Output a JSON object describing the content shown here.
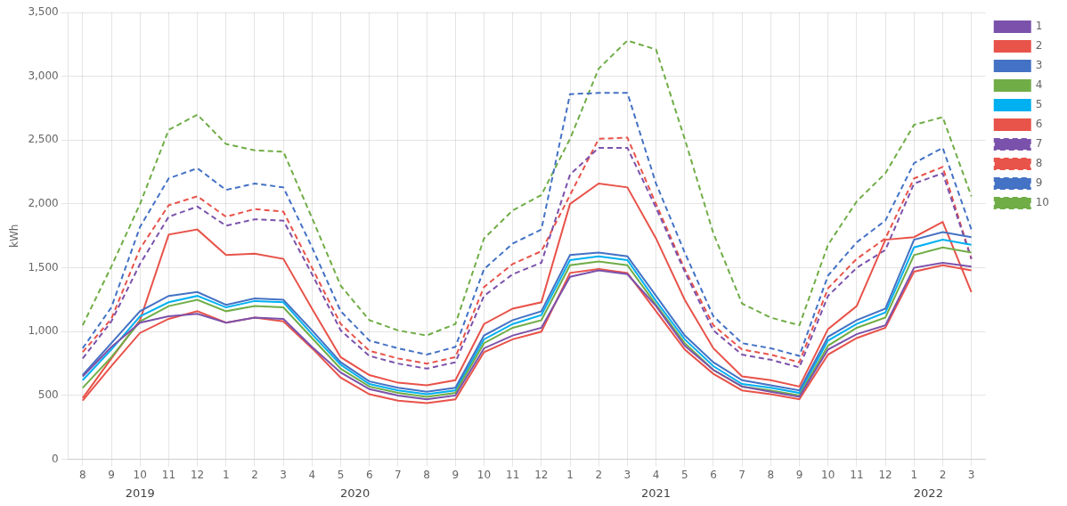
{
  "chart_data": {
    "type": "line",
    "ylabel": "kWh",
    "categories": [
      "8",
      "9",
      "10",
      "11",
      "12",
      "1",
      "2",
      "3",
      "4",
      "5",
      "6",
      "7",
      "8",
      "9",
      "10",
      "11",
      "12",
      "1",
      "2",
      "3",
      "4",
      "5",
      "6",
      "7",
      "8",
      "9",
      "10",
      "11",
      "12",
      "1",
      "2",
      "3"
    ],
    "series": [
      {
        "name": "1",
        "color": "#7B52AB",
        "line_style": "solid",
        "values": [
          650,
          880,
          1070,
          1120,
          1140,
          1070,
          1110,
          1100,
          880,
          680,
          550,
          500,
          470,
          500,
          870,
          970,
          1030,
          1430,
          1480,
          1450,
          1200,
          890,
          700,
          570,
          530,
          490,
          860,
          980,
          1050,
          1500,
          1540,
          1510
        ]
      },
      {
        "name": "2",
        "color": "#E8534A",
        "line_style": "solid",
        "values": [
          460,
          730,
          990,
          1100,
          1160,
          1070,
          1110,
          1080,
          870,
          640,
          510,
          460,
          440,
          470,
          840,
          940,
          1000,
          1460,
          1490,
          1460,
          1160,
          860,
          670,
          540,
          510,
          470,
          820,
          950,
          1030,
          1470,
          1520,
          1480
        ]
      },
      {
        "name": "3",
        "color": "#4472C4",
        "line_style": "solid",
        "values": [
          660,
          910,
          1160,
          1280,
          1310,
          1210,
          1260,
          1250,
          1010,
          760,
          610,
          560,
          530,
          560,
          970,
          1090,
          1160,
          1600,
          1620,
          1590,
          1280,
          970,
          760,
          620,
          580,
          540,
          960,
          1090,
          1180,
          1720,
          1780,
          1740
        ]
      },
      {
        "name": "4",
        "color": "#70AD47",
        "line_style": "solid",
        "values": [
          560,
          800,
          1080,
          1200,
          1250,
          1160,
          1200,
          1190,
          950,
          710,
          570,
          520,
          490,
          520,
          910,
          1030,
          1090,
          1520,
          1550,
          1520,
          1210,
          910,
          700,
          570,
          540,
          500,
          890,
          1030,
          1110,
          1600,
          1660,
          1620
        ]
      },
      {
        "name": "5",
        "color": "#00B0F0",
        "line_style": "solid",
        "values": [
          620,
          860,
          1120,
          1230,
          1280,
          1190,
          1240,
          1230,
          980,
          740,
          590,
          540,
          510,
          540,
          940,
          1060,
          1130,
          1560,
          1590,
          1560,
          1240,
          940,
          730,
          590,
          560,
          520,
          930,
          1060,
          1150,
          1660,
          1720,
          1680
        ]
      },
      {
        "name": "6",
        "color": "#E8534A",
        "line_style": "solid",
        "values": [
          480,
          790,
          1090,
          1760,
          1800,
          1600,
          1610,
          1570,
          1180,
          800,
          660,
          600,
          580,
          620,
          1060,
          1180,
          1230,
          2000,
          2160,
          2130,
          1730,
          1250,
          870,
          650,
          620,
          570,
          1020,
          1200,
          1720,
          1740,
          1860,
          1310
        ]
      },
      {
        "name": "7",
        "color": "#7B52AB",
        "line_style": "dashed",
        "values": [
          790,
          1080,
          1530,
          1900,
          1980,
          1830,
          1880,
          1870,
          1450,
          1010,
          810,
          750,
          710,
          760,
          1280,
          1450,
          1540,
          2230,
          2440,
          2440,
          1970,
          1470,
          1010,
          820,
          780,
          720,
          1280,
          1500,
          1640,
          2160,
          2240,
          1570
        ]
      },
      {
        "name": "8",
        "color": "#E8534A",
        "line_style": "dashed",
        "values": [
          840,
          1100,
          1650,
          1990,
          2060,
          1900,
          1960,
          1940,
          1500,
          1060,
          850,
          790,
          750,
          800,
          1350,
          1530,
          1630,
          2070,
          2510,
          2520,
          2000,
          1490,
          1050,
          860,
          820,
          760,
          1340,
          1570,
          1730,
          2200,
          2290,
          1570
        ]
      },
      {
        "name": "9",
        "color": "#4472C4",
        "line_style": "dashed",
        "values": [
          870,
          1190,
          1820,
          2200,
          2280,
          2110,
          2160,
          2130,
          1660,
          1160,
          930,
          870,
          820,
          880,
          1490,
          1690,
          1800,
          2860,
          2870,
          2870,
          2160,
          1620,
          1120,
          910,
          870,
          810,
          1440,
          1700,
          1870,
          2320,
          2440,
          1800
        ]
      },
      {
        "name": "10",
        "color": "#70AD47",
        "line_style": "dashed",
        "values": [
          1050,
          1510,
          2000,
          2580,
          2700,
          2470,
          2420,
          2410,
          1890,
          1360,
          1090,
          1010,
          970,
          1060,
          1730,
          1950,
          2070,
          2510,
          3060,
          3280,
          3210,
          2510,
          1770,
          1220,
          1110,
          1050,
          1680,
          2020,
          2240,
          2620,
          2680,
          2060
        ]
      }
    ],
    "ylim": [
      0,
      3500
    ],
    "yticks": [
      0,
      500,
      1000,
      1500,
      2000,
      2500,
      3000,
      3500
    ],
    "grid": true,
    "legend": "right",
    "annotations": [
      {
        "text": "2019",
        "x": 2
      },
      {
        "text": "2020",
        "x": 9.5
      },
      {
        "text": "2021",
        "x": 20
      },
      {
        "text": "2022",
        "x": 29.5
      }
    ]
  }
}
